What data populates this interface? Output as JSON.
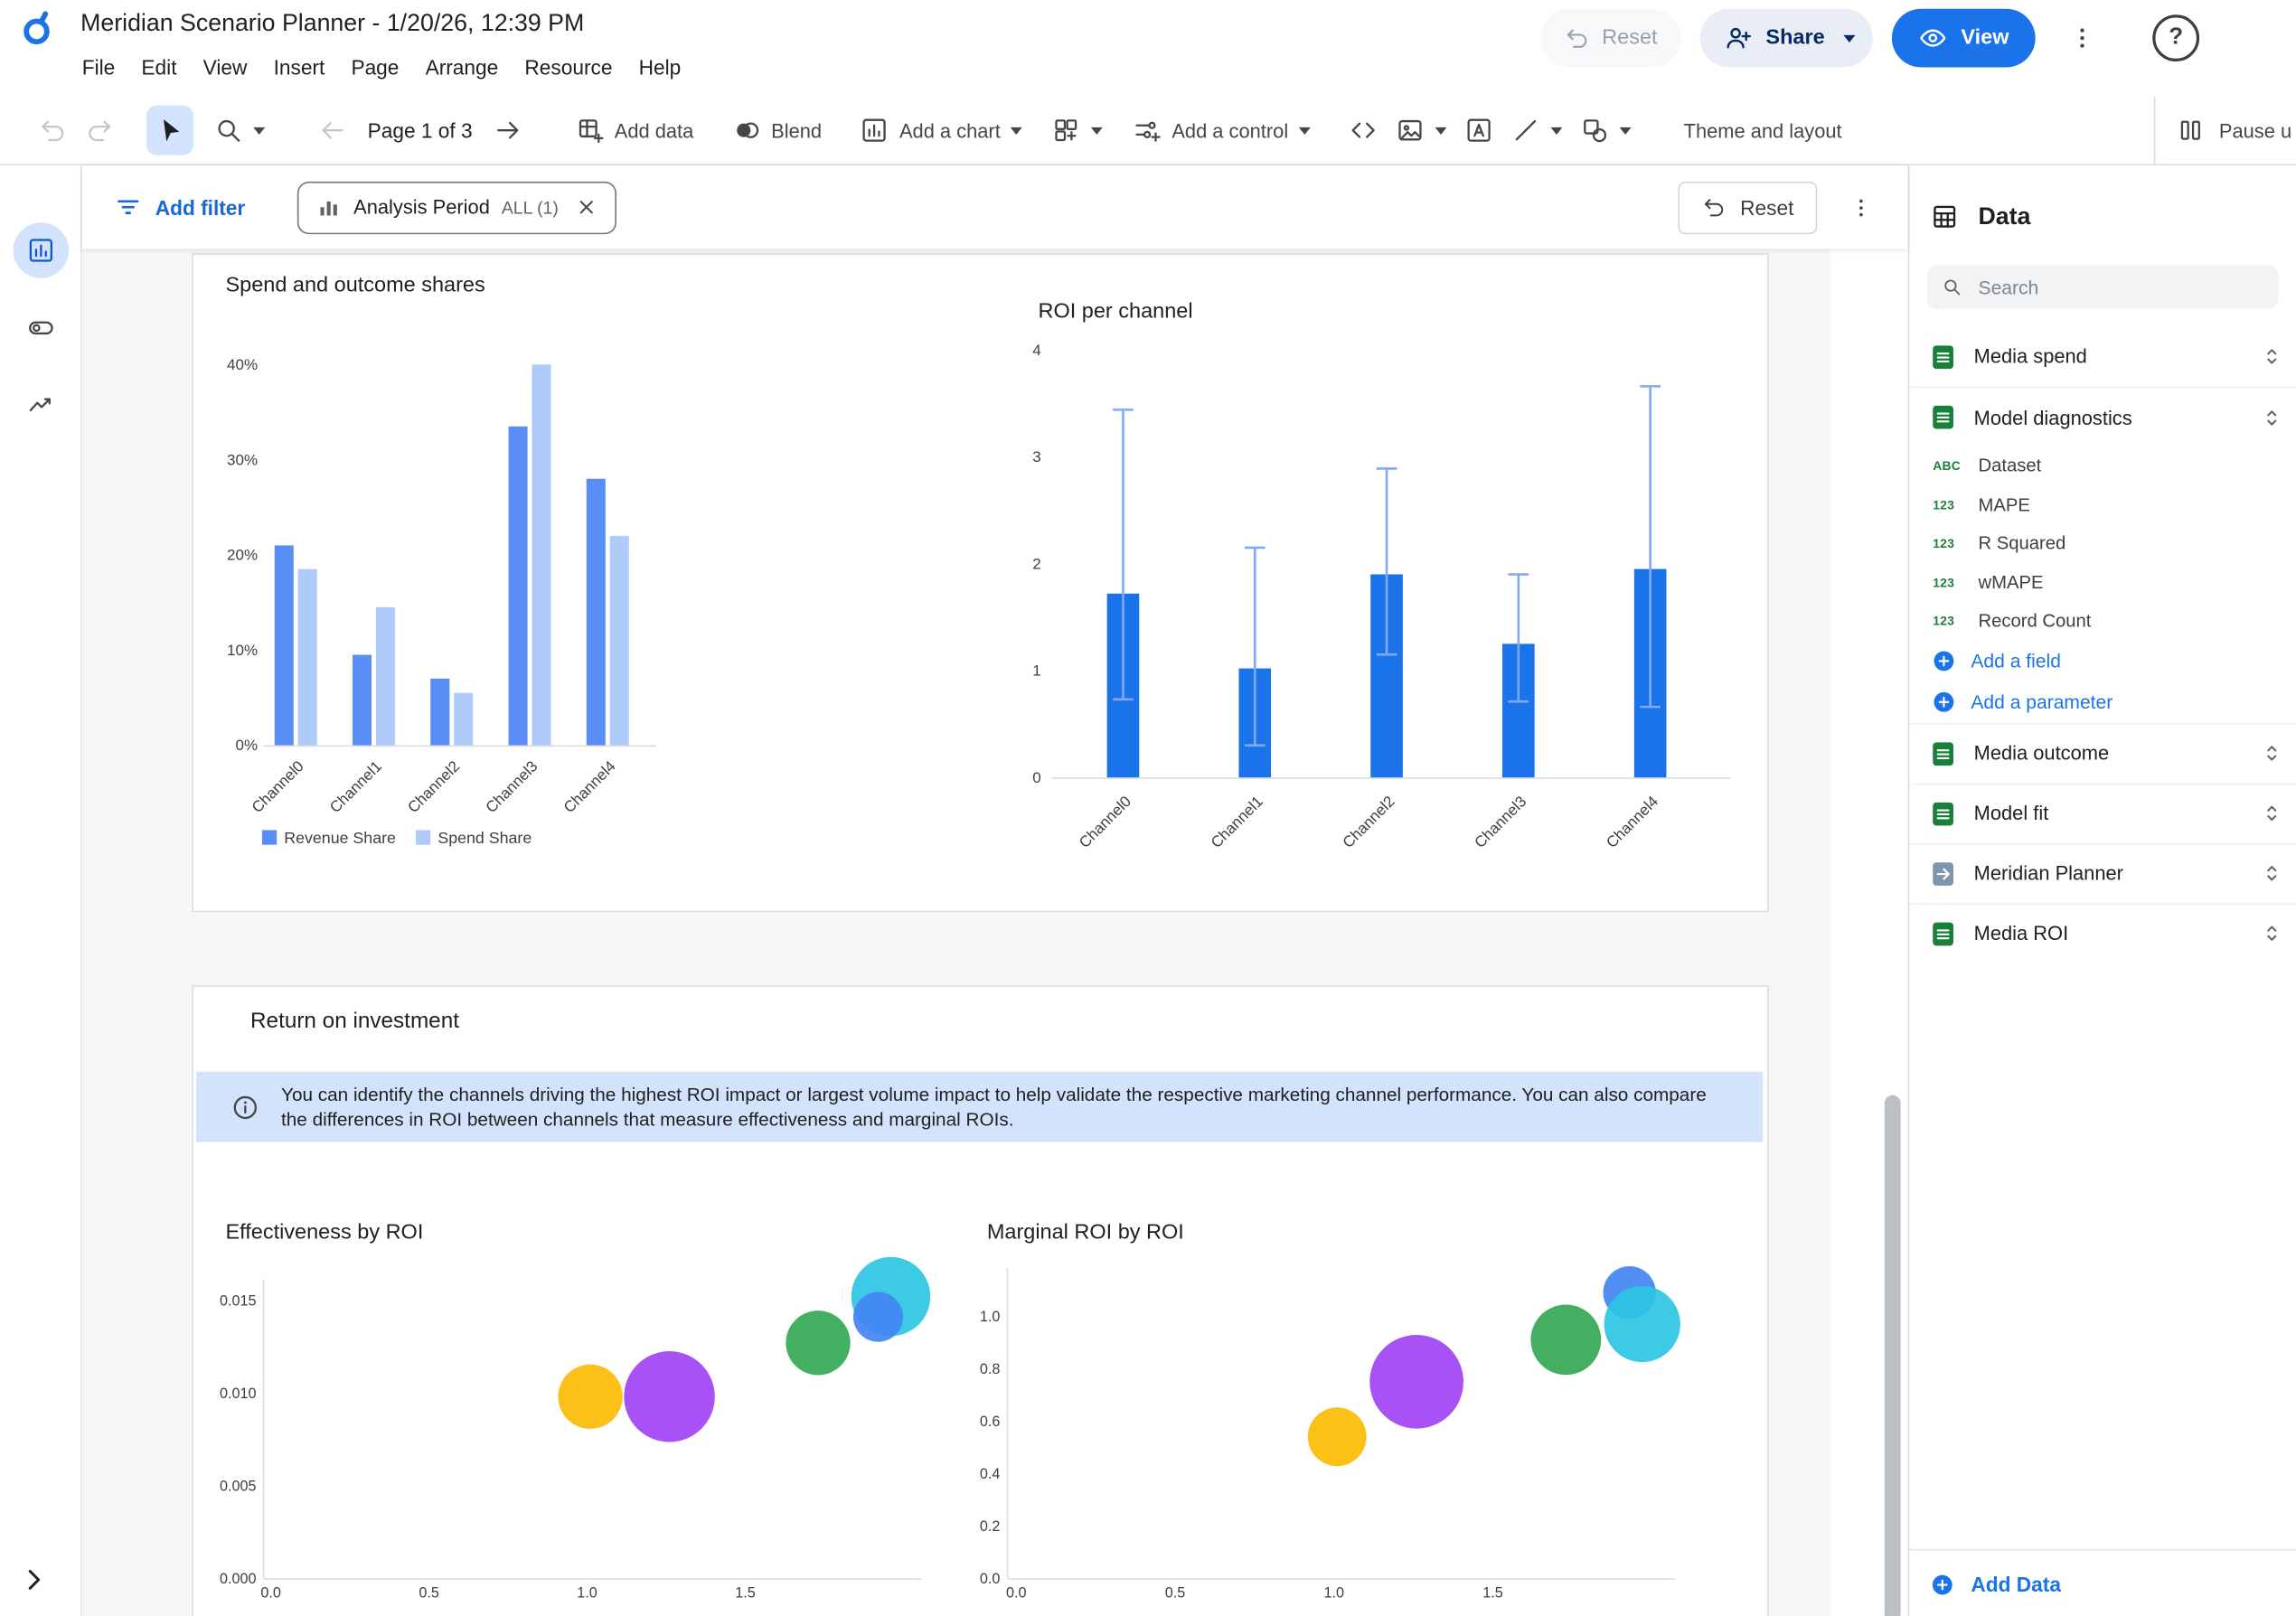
{
  "header": {
    "title": "Meridian Scenario Planner - 1/20/26, 12:39 PM",
    "menus": [
      "File",
      "Edit",
      "View",
      "Insert",
      "Page",
      "Arrange",
      "Resource",
      "Help"
    ],
    "actions": {
      "reset": "Reset",
      "share": "Share",
      "view": "View"
    },
    "help_glyph": "?"
  },
  "toolbar": {
    "page_indicator": "Page 1 of 3",
    "buttons": {
      "add_data": "Add data",
      "blend": "Blend",
      "add_chart": "Add a chart",
      "add_control": "Add a control",
      "theme_layout": "Theme and layout",
      "pause_updates": "Pause u"
    }
  },
  "filter_bar": {
    "add_filter": "Add filter",
    "chip_label": "Analysis Period",
    "chip_value": "ALL (1)",
    "reset": "Reset"
  },
  "canvas": {
    "roi_section_title": "Return on investment",
    "info_text": "You can identify the channels driving the highest ROI impact or largest volume impact to help validate the respective marketing channel performance. You can also compare the differences in ROI between channels that measure effectiveness and marginal ROIs."
  },
  "data_panel": {
    "title": "Data",
    "search_placeholder": "Search",
    "items": [
      {
        "kind": "source",
        "name": "Media spend",
        "icon": "sheets"
      },
      {
        "kind": "source",
        "name": "Model diagnostics",
        "icon": "sheets",
        "expanded": true
      },
      {
        "kind": "field",
        "type": "ABC",
        "name": "Dataset"
      },
      {
        "kind": "field",
        "type": "123",
        "name": "MAPE"
      },
      {
        "kind": "field",
        "type": "123",
        "name": "R Squared"
      },
      {
        "kind": "field",
        "type": "123",
        "name": "wMAPE"
      },
      {
        "kind": "field",
        "type": "123",
        "name": "Record Count"
      },
      {
        "kind": "action",
        "name": "Add a field"
      },
      {
        "kind": "action",
        "name": "Add a parameter"
      },
      {
        "kind": "source",
        "name": "Media outcome",
        "icon": "sheets"
      },
      {
        "kind": "source",
        "name": "Model fit",
        "icon": "sheets"
      },
      {
        "kind": "source",
        "name": "Meridian Planner",
        "icon": "connector"
      },
      {
        "kind": "source",
        "name": "Media ROI",
        "icon": "sheets"
      }
    ],
    "add_data_label": "Add Data"
  },
  "chart_data": [
    {
      "type": "bar",
      "title": "Spend and outcome shares",
      "categories": [
        "Channel0",
        "Channel1",
        "Channel2",
        "Channel3",
        "Channel4"
      ],
      "series": [
        {
          "name": "Revenue Share",
          "color": "#5a8df5",
          "values": [
            21,
            9.5,
            7,
            33.5,
            28
          ]
        },
        {
          "name": "Spend Share",
          "color": "#aecbfa",
          "values": [
            18.5,
            14.5,
            5.5,
            40,
            22
          ]
        }
      ],
      "xlabel": "",
      "ylabel": "",
      "ylim": [
        0,
        40
      ],
      "yticks": [
        "0%",
        "10%",
        "20%",
        "30%",
        "40%"
      ],
      "legend_position": "bottom",
      "grid": false
    },
    {
      "type": "bar",
      "title": "ROI per channel",
      "categories": [
        "Channel0",
        "Channel1",
        "Channel2",
        "Channel3",
        "Channel4"
      ],
      "values": [
        1.72,
        1.02,
        1.9,
        1.25,
        1.95
      ],
      "error_low": [
        0.73,
        0.3,
        1.15,
        0.71,
        0.66
      ],
      "error_high": [
        3.44,
        2.15,
        2.89,
        1.9,
        3.66
      ],
      "xlabel": "",
      "ylabel": "",
      "ylim": [
        0,
        4
      ],
      "yticks": [
        "0",
        "1",
        "2",
        "3",
        "4"
      ],
      "bar_color": "#1a73e8",
      "error_color": "#7fa9f5",
      "grid": false
    },
    {
      "type": "scatter",
      "title": "Effectiveness by ROI",
      "xlim": [
        0,
        2.05
      ],
      "ylim": [
        0,
        0.016
      ],
      "xticks": [
        "0.0",
        "0.5",
        "1.0",
        "1.5"
      ],
      "yticks": [
        "0.000",
        "0.005",
        "0.010",
        "0.015"
      ],
      "points": [
        {
          "x": 1.01,
          "y": 0.0098,
          "r": 22,
          "color": "#fbbc04"
        },
        {
          "x": 1.26,
          "y": 0.0098,
          "r": 31,
          "color": "#a142f4"
        },
        {
          "x": 1.73,
          "y": 0.0127,
          "r": 22,
          "color": "#34a853"
        },
        {
          "x": 1.96,
          "y": 0.0152,
          "r": 27,
          "color": "#2cc5e3"
        },
        {
          "x": 1.92,
          "y": 0.0141,
          "r": 17,
          "color": "#4285f4"
        }
      ],
      "grid": false
    },
    {
      "type": "scatter",
      "title": "Marginal ROI by ROI",
      "xlim": [
        0,
        2.1
      ],
      "ylim": [
        0,
        1.15
      ],
      "xticks": [
        "0.0",
        "0.5",
        "1.0",
        "1.5"
      ],
      "yticks": [
        "0.0",
        "0.2",
        "0.4",
        "0.6",
        "0.8",
        "1.0"
      ],
      "points": [
        {
          "x": 1.01,
          "y": 0.54,
          "r": 20,
          "color": "#fbbc04"
        },
        {
          "x": 1.26,
          "y": 0.75,
          "r": 32,
          "color": "#a142f4"
        },
        {
          "x": 1.73,
          "y": 0.91,
          "r": 24,
          "color": "#34a853"
        },
        {
          "x": 1.93,
          "y": 1.09,
          "r": 18,
          "color": "#4285f4"
        },
        {
          "x": 1.97,
          "y": 0.97,
          "r": 26,
          "color": "#2cc5e3"
        }
      ],
      "grid": false
    }
  ]
}
